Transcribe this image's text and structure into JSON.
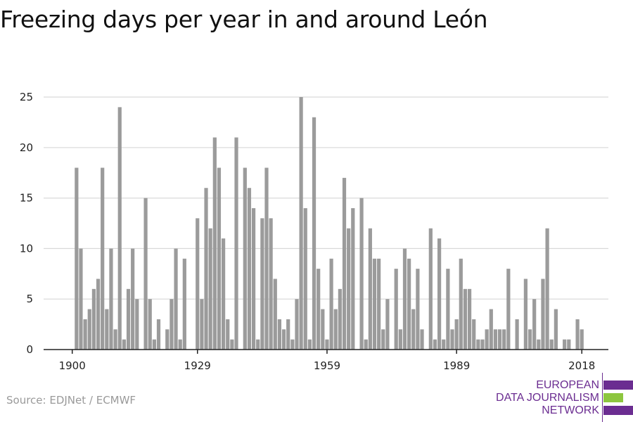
{
  "colors": {
    "bar": "#9b9b9b",
    "grid": "#d9d9d9",
    "axis": "#222222",
    "logo_purple": "#6b2d91",
    "logo_green": "#8dc63f"
  },
  "source": "Source: EDJNet / ECMWF",
  "logo": {
    "line1": "EUROPEAN",
    "line2": "DATA JOURNALISM",
    "line3": "NETWORK"
  },
  "chart_data": {
    "type": "bar",
    "title": "Freezing days per year in and around León",
    "xlabel": "",
    "ylabel": "",
    "ylim": [
      0,
      25
    ],
    "y_ticks": [
      "0",
      "5",
      "10",
      "15",
      "20",
      "25"
    ],
    "x_ticks": [
      "1900",
      "1929",
      "1959",
      "1989",
      "2018"
    ],
    "grid": true,
    "x_start": 1900,
    "values": [
      0,
      18,
      10,
      3,
      4,
      6,
      7,
      18,
      4,
      10,
      2,
      24,
      1,
      6,
      10,
      5,
      0,
      15,
      5,
      1,
      3,
      0,
      2,
      5,
      10,
      1,
      9,
      0,
      0,
      13,
      5,
      16,
      12,
      21,
      18,
      11,
      3,
      1,
      21,
      0,
      18,
      16,
      14,
      1,
      13,
      18,
      13,
      7,
      3,
      2,
      3,
      1,
      5,
      25,
      14,
      1,
      23,
      8,
      4,
      1,
      9,
      4,
      6,
      17,
      12,
      14,
      0,
      15,
      1,
      12,
      9,
      9,
      2,
      5,
      0,
      8,
      2,
      10,
      9,
      4,
      8,
      2,
      0,
      12,
      1,
      11,
      1,
      8,
      2,
      3,
      9,
      6,
      6,
      3,
      1,
      1,
      2,
      4,
      2,
      2,
      2,
      8,
      0,
      3,
      0,
      7,
      2,
      5,
      1,
      7,
      12,
      1,
      4,
      0,
      1,
      1,
      0,
      3,
      2
    ]
  }
}
